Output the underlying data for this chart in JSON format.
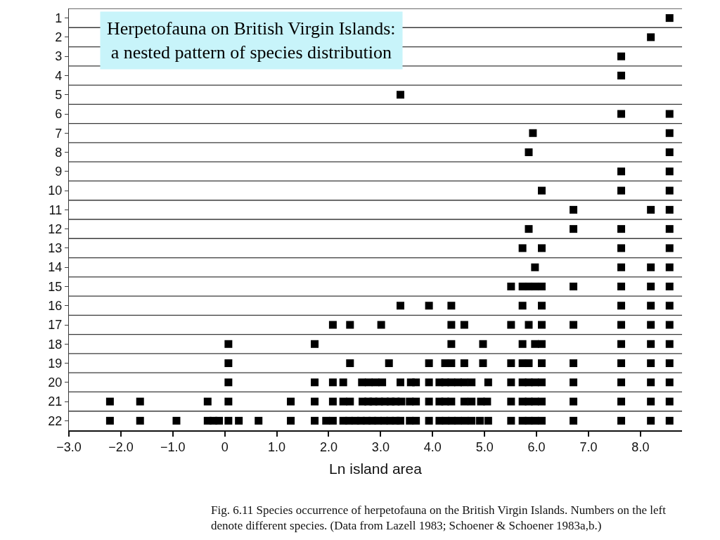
{
  "chart_data": {
    "type": "scatter",
    "title": "Herpetofauna on British Virgin Islands:\na nested pattern of species distribution",
    "xlabel": "Ln island area",
    "annotations": [
      "Fig. 6.11 Species occurrence of herpetofauna on the British Virgin Islands. Numbers on the left denote different species. (Data from Lazell 1983; Schoener & Schoener 1983a,b.)"
    ],
    "marker": "square",
    "xlim": [
      -3.0,
      8.8
    ],
    "xticks": [
      {
        "value": -3,
        "label": "−3.0"
      },
      {
        "value": -2,
        "label": "−2.0"
      },
      {
        "value": -1,
        "label": "−1.0"
      },
      0,
      {
        "value": 1,
        "label": "1.0"
      },
      {
        "value": 2,
        "label": "2.0"
      },
      {
        "value": 3,
        "label": "3.0"
      },
      {
        "value": 4,
        "label": "4.0"
      },
      {
        "value": 5,
        "label": "5.0"
      },
      {
        "value": 6,
        "label": "6.0"
      },
      {
        "value": 7,
        "label": "7.0"
      },
      {
        "value": 8,
        "label": "8.0"
      }
    ],
    "ylim": [
      22.5,
      0.5
    ],
    "yticks": [
      1,
      2,
      3,
      4,
      5,
      6,
      7,
      8,
      9,
      10,
      11,
      12,
      13,
      14,
      15,
      16,
      17,
      18,
      19,
      20,
      21,
      22
    ],
    "ref_lines": [
      {
        "axis": "y",
        "value": 0.5,
        "color": "#3a3a3a"
      },
      {
        "axis": "y",
        "value": 1.5,
        "color": "#3a3a3a"
      },
      {
        "axis": "y",
        "value": 2.5,
        "color": "#3a3a3a"
      },
      {
        "axis": "y",
        "value": 3.5,
        "color": "#3a3a3a"
      },
      {
        "axis": "y",
        "value": 4.5,
        "color": "#3a3a3a"
      },
      {
        "axis": "y",
        "value": 5.5,
        "color": "#3a3a3a"
      },
      {
        "axis": "y",
        "value": 6.5,
        "color": "#3a3a3a"
      },
      {
        "axis": "y",
        "value": 7.5,
        "color": "#3a3a3a"
      },
      {
        "axis": "y",
        "value": 8.5,
        "color": "#3a3a3a"
      },
      {
        "axis": "y",
        "value": 9.5,
        "color": "#3a3a3a"
      },
      {
        "axis": "y",
        "value": 10.5,
        "color": "#3a3a3a"
      },
      {
        "axis": "y",
        "value": 11.5,
        "color": "#3a3a3a"
      },
      {
        "axis": "y",
        "value": 12.5,
        "color": "#3a3a3a"
      },
      {
        "axis": "y",
        "value": 13.5,
        "color": "#3a3a3a"
      },
      {
        "axis": "y",
        "value": 14.5,
        "color": "#3a3a3a"
      },
      {
        "axis": "y",
        "value": 15.5,
        "color": "#3a3a3a"
      },
      {
        "axis": "y",
        "value": 16.5,
        "color": "#3a3a3a"
      },
      {
        "axis": "y",
        "value": 17.5,
        "color": "#3a3a3a"
      },
      {
        "axis": "y",
        "value": 18.5,
        "color": "#3a3a3a"
      },
      {
        "axis": "y",
        "value": 19.5,
        "color": "#3a3a3a"
      },
      {
        "axis": "y",
        "value": 20.5,
        "color": "#3a3a3a"
      },
      {
        "axis": "y",
        "value": 21.5,
        "color": "#3a3a3a"
      }
    ],
    "series": [
      {
        "color": "#000000",
        "x": [
          8.56
        ],
        "values": [
          1
        ]
      },
      {
        "color": "#000000",
        "x": [
          8.2
        ],
        "values": [
          2
        ]
      },
      {
        "color": "#000000",
        "x": [
          7.63
        ],
        "values": [
          3
        ]
      },
      {
        "color": "#000000",
        "x": [
          7.63
        ],
        "values": [
          4
        ]
      },
      {
        "color": "#000000",
        "x": [
          3.38
        ],
        "values": [
          5
        ]
      },
      {
        "color": "#000000",
        "x": [
          7.63,
          8.56
        ],
        "values": [
          6,
          6
        ]
      },
      {
        "color": "#000000",
        "x": [
          5.93,
          8.56
        ],
        "values": [
          7,
          7
        ]
      },
      {
        "color": "#000000",
        "x": [
          5.85,
          8.56
        ],
        "values": [
          8,
          8
        ]
      },
      {
        "color": "#000000",
        "x": [
          7.63,
          8.56
        ],
        "values": [
          9,
          9
        ]
      },
      {
        "color": "#000000",
        "x": [
          6.1,
          7.63,
          8.56
        ],
        "values": [
          10,
          10,
          10
        ]
      },
      {
        "color": "#000000",
        "x": [
          6.71,
          8.2,
          8.56
        ],
        "values": [
          11,
          11,
          11
        ]
      },
      {
        "color": "#000000",
        "x": [
          5.85,
          6.71,
          7.63,
          8.56
        ],
        "values": [
          12,
          12,
          12,
          12
        ]
      },
      {
        "color": "#000000",
        "x": [
          5.73,
          6.1,
          7.63,
          8.56
        ],
        "values": [
          13,
          13,
          13,
          13
        ]
      },
      {
        "color": "#000000",
        "x": [
          5.97,
          7.63,
          8.2,
          8.56
        ],
        "values": [
          14,
          14,
          14,
          14
        ]
      },
      {
        "color": "#000000",
        "x": [
          5.51,
          5.73,
          5.85,
          5.97,
          6.1,
          6.71,
          7.63,
          8.2,
          8.56
        ],
        "values": [
          15,
          15,
          15,
          15,
          15,
          15,
          15,
          15,
          15
        ]
      },
      {
        "color": "#000000",
        "x": [
          3.38,
          3.93,
          4.36,
          5.73,
          6.1,
          7.63,
          8.2,
          8.56
        ],
        "values": [
          16,
          16,
          16,
          16,
          16,
          16,
          16,
          16
        ]
      },
      {
        "color": "#000000",
        "x": [
          2.08,
          2.41,
          3.01,
          4.36,
          4.61,
          5.51,
          5.85,
          6.1,
          6.71,
          7.63,
          8.2,
          8.56
        ],
        "values": [
          17,
          17,
          17,
          17,
          17,
          17,
          17,
          17,
          17,
          17,
          17,
          17
        ]
      },
      {
        "color": "#000000",
        "x": [
          0.07,
          1.73,
          4.36,
          4.97,
          5.73,
          5.97,
          6.1,
          7.63,
          8.2,
          8.56
        ],
        "values": [
          18,
          18,
          18,
          18,
          18,
          18,
          18,
          18,
          18,
          18
        ]
      },
      {
        "color": "#000000",
        "x": [
          0.07,
          2.41,
          3.16,
          3.93,
          4.24,
          4.36,
          4.61,
          4.97,
          5.51,
          5.73,
          5.85,
          6.1,
          6.71,
          7.63,
          8.2,
          8.56
        ],
        "values": [
          19,
          19,
          19,
          19,
          19,
          19,
          19,
          19,
          19,
          19,
          19,
          19,
          19,
          19,
          19,
          19
        ]
      },
      {
        "color": "#000000",
        "x": [
          0.07,
          1.73,
          2.08,
          2.28,
          2.64,
          2.77,
          2.9,
          3.03,
          3.38,
          3.58,
          3.68,
          3.93,
          4.13,
          4.24,
          4.36,
          4.49,
          4.61,
          4.75,
          5.07,
          5.51,
          5.73,
          5.85,
          5.97,
          6.1,
          6.71,
          7.63,
          8.2,
          8.56
        ],
        "values": [
          20,
          20,
          20,
          20,
          20,
          20,
          20,
          20,
          20,
          20,
          20,
          20,
          20,
          20,
          20,
          20,
          20,
          20,
          20,
          20,
          20,
          20,
          20,
          20,
          20,
          20,
          20,
          20
        ]
      },
      {
        "color": "#000000",
        "x": [
          -2.21,
          -1.63,
          -0.33,
          0.07,
          1.27,
          1.73,
          2.08,
          2.28,
          2.41,
          2.65,
          2.76,
          2.86,
          2.97,
          3.08,
          3.19,
          3.29,
          3.4,
          3.56,
          3.68,
          3.93,
          4.13,
          4.24,
          4.36,
          4.61,
          4.75,
          4.93,
          5.05,
          5.51,
          5.73,
          5.85,
          5.97,
          6.1,
          6.71,
          7.63,
          8.2,
          8.56
        ],
        "values": [
          21,
          21,
          21,
          21,
          21,
          21,
          21,
          21,
          21,
          21,
          21,
          21,
          21,
          21,
          21,
          21,
          21,
          21,
          21,
          21,
          21,
          21,
          21,
          21,
          21,
          21,
          21,
          21,
          21,
          21,
          21,
          21,
          21,
          21,
          21,
          21
        ]
      },
      {
        "color": "#000000",
        "x": [
          -2.21,
          -1.63,
          -0.93,
          -0.33,
          -0.22,
          -0.11,
          0.07,
          0.27,
          0.65,
          1.27,
          1.73,
          1.95,
          2.08,
          2.28,
          2.39,
          2.51,
          2.62,
          2.73,
          2.84,
          2.95,
          3.07,
          3.18,
          3.29,
          3.38,
          3.56,
          3.68,
          3.93,
          4.13,
          4.25,
          4.37,
          4.49,
          4.62,
          4.75,
          4.91,
          5.07,
          5.51,
          5.73,
          5.85,
          5.97,
          6.1,
          6.71,
          7.63,
          8.2,
          8.56
        ],
        "values": [
          22,
          22,
          22,
          22,
          22,
          22,
          22,
          22,
          22,
          22,
          22,
          22,
          22,
          22,
          22,
          22,
          22,
          22,
          22,
          22,
          22,
          22,
          22,
          22,
          22,
          22,
          22,
          22,
          22,
          22,
          22,
          22,
          22,
          22,
          22,
          22,
          22,
          22,
          22,
          22,
          22,
          22,
          22,
          22
        ]
      }
    ]
  }
}
